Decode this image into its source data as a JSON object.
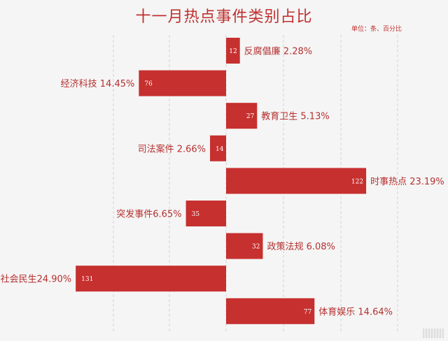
{
  "chart_data": {
    "type": "bar",
    "orientation": "horizontal",
    "title": "十一月热点事件类别占比",
    "unit_note": "单位：条、百分比",
    "categories": [
      "反腐倡廉",
      "经济科技",
      "教育卫生",
      "司法案件",
      "时事热点",
      "突发事件",
      "政策法规",
      "社会民生",
      "体育娱乐"
    ],
    "labels": [
      "反腐倡廉 2.28%",
      "经济科技 14.45%",
      "教育卫生 5.13%",
      "司法案件 2.66%",
      "时事热点 23.19%",
      "突发事件6.65%",
      "政策法规 6.08%",
      "社会民生24.90%",
      "体育娱乐 14.64%"
    ],
    "values": [
      12,
      76,
      27,
      14,
      122,
      35,
      32,
      131,
      77
    ],
    "percentages": [
      2.28,
      14.45,
      5.13,
      2.66,
      23.19,
      6.65,
      6.08,
      24.9,
      14.64
    ],
    "direction": [
      "right",
      "left",
      "right",
      "left",
      "right",
      "left",
      "right",
      "left",
      "right"
    ],
    "grid": true,
    "bar_color": "#c6302f",
    "label_color": "#b5302f"
  }
}
